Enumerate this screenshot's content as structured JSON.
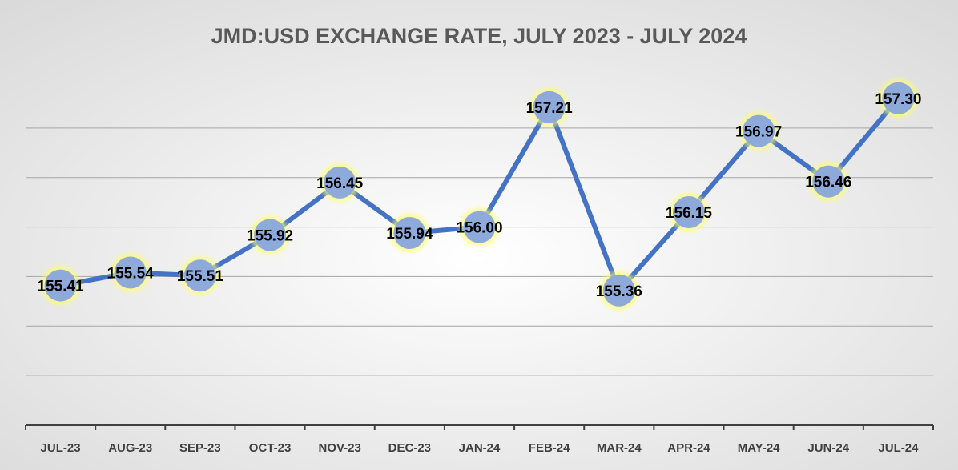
{
  "chart_data": {
    "type": "line",
    "title": "JMD:USD EXCHANGE RATE, JULY 2023 - JULY 2024",
    "categories": [
      "JUL-23",
      "AUG-23",
      "SEP-23",
      "OCT-23",
      "NOV-23",
      "DEC-23",
      "JAN-24",
      "FEB-24",
      "MAR-24",
      "APR-24",
      "MAY-24",
      "JUN-24",
      "JUL-24"
    ],
    "values": [
      155.41,
      155.54,
      155.51,
      155.92,
      156.45,
      155.94,
      156.0,
      157.21,
      155.36,
      156.15,
      156.97,
      156.46,
      157.3
    ],
    "value_labels": [
      "155.41",
      "155.54",
      "155.51",
      "155.92",
      "156.45",
      "155.94",
      "156.00",
      "157.21",
      "155.36",
      "156.15",
      "156.97",
      "156.46",
      "157.30"
    ],
    "color": "#4472c4",
    "marker_color": "#8eaadb",
    "ylim": [
      154,
      157.5
    ],
    "yticks": [
      154,
      154.5,
      155,
      155.5,
      156,
      156.5,
      157
    ],
    "grid": true
  }
}
